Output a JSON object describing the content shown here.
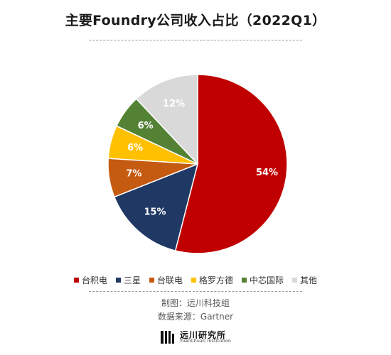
{
  "title": "主要Foundry公司收入占比（2022Q1）",
  "credits": {
    "made_by": "制图：远川科技组",
    "source": "数据来源：Gartner"
  },
  "brand": {
    "name": "远川研究所",
    "subtitle": "YuanChuan Institution"
  },
  "chart_data": {
    "type": "pie",
    "title": "主要Foundry公司收入占比（2022Q1）",
    "categories": [
      "台积电",
      "三星",
      "台联电",
      "格罗方德",
      "中芯国际",
      "其他"
    ],
    "values": [
      54,
      15,
      7,
      6,
      6,
      12
    ],
    "data_labels": [
      "54%",
      "15%",
      "7%",
      "6%",
      "6%",
      "12%"
    ],
    "colors": [
      "#c00000",
      "#1f3864",
      "#c55a11",
      "#ffc000",
      "#548235",
      "#d9d9d9"
    ],
    "label_colors": [
      "#ffffff",
      "#ffffff",
      "#ffffff",
      "#ffffff",
      "#ffffff",
      "#ffffff"
    ],
    "legend_position": "bottom",
    "start_angle_deg": 0,
    "direction": "clockwise"
  }
}
